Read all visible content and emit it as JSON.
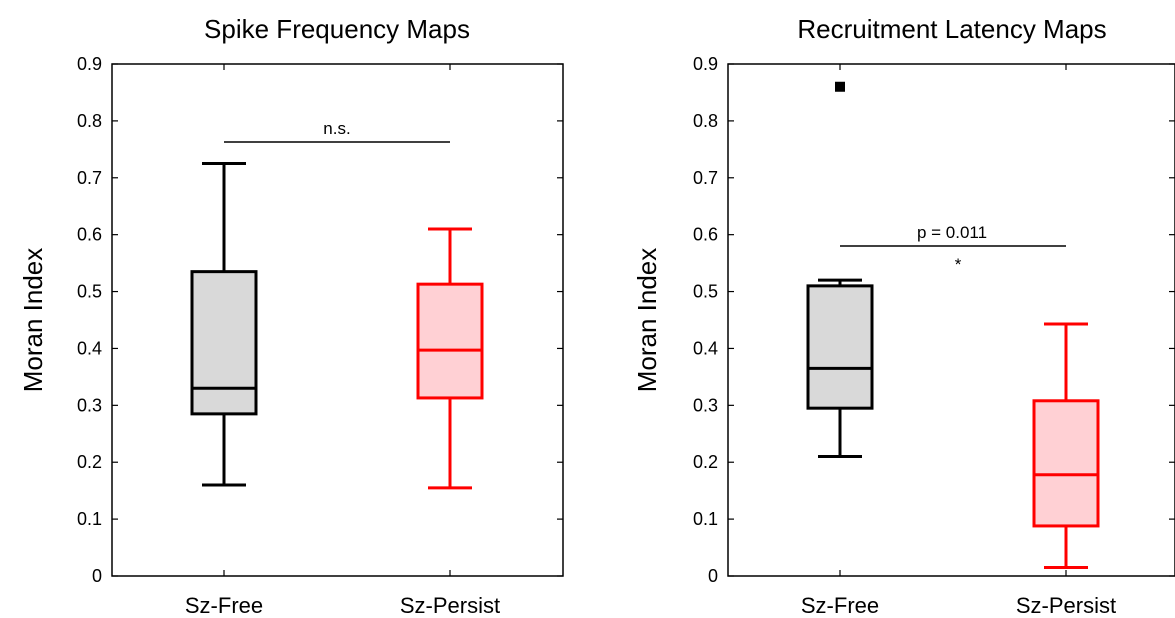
{
  "chart_data": [
    {
      "type": "box",
      "title": "Spike Frequency Maps",
      "ylabel": "Moran Index",
      "xlabel": "",
      "ylim": [
        0,
        0.9
      ],
      "yticks": [
        "0",
        "0.1",
        "0.2",
        "0.3",
        "0.4",
        "0.5",
        "0.6",
        "0.7",
        "0.8",
        "0.9"
      ],
      "categories": [
        "Sz-Free",
        "Sz-Persist"
      ],
      "boxes": [
        {
          "min": 0.16,
          "q1": 0.285,
          "median": 0.33,
          "q3": 0.535,
          "max": 0.725,
          "outliers": [],
          "fill": "#d9d9d9",
          "stroke": "#000000"
        },
        {
          "min": 0.155,
          "q1": 0.313,
          "median": 0.397,
          "q3": 0.513,
          "max": 0.61,
          "outliers": [],
          "fill": "#ffd0d4",
          "stroke": "#ff0000"
        }
      ],
      "significance": {
        "y": 0.763,
        "label": "n.s.",
        "star": ""
      }
    },
    {
      "type": "box",
      "title": "Recruitment Latency Maps",
      "ylabel": "Moran Index",
      "xlabel": "",
      "ylim": [
        0,
        0.9
      ],
      "yticks": [
        "0",
        "0.1",
        "0.2",
        "0.3",
        "0.4",
        "0.5",
        "0.6",
        "0.7",
        "0.8",
        "0.9"
      ],
      "categories": [
        "Sz-Free",
        "Sz-Persist"
      ],
      "boxes": [
        {
          "min": 0.21,
          "q1": 0.295,
          "median": 0.365,
          "q3": 0.51,
          "max": 0.52,
          "outliers": [
            0.86
          ],
          "fill": "#d9d9d9",
          "stroke": "#000000"
        },
        {
          "min": 0.015,
          "q1": 0.088,
          "median": 0.178,
          "q3": 0.308,
          "max": 0.443,
          "outliers": [],
          "fill": "#ffd0d4",
          "stroke": "#ff0000"
        }
      ],
      "significance": {
        "y": 0.58,
        "label": "p = 0.011",
        "star": "*"
      }
    }
  ]
}
